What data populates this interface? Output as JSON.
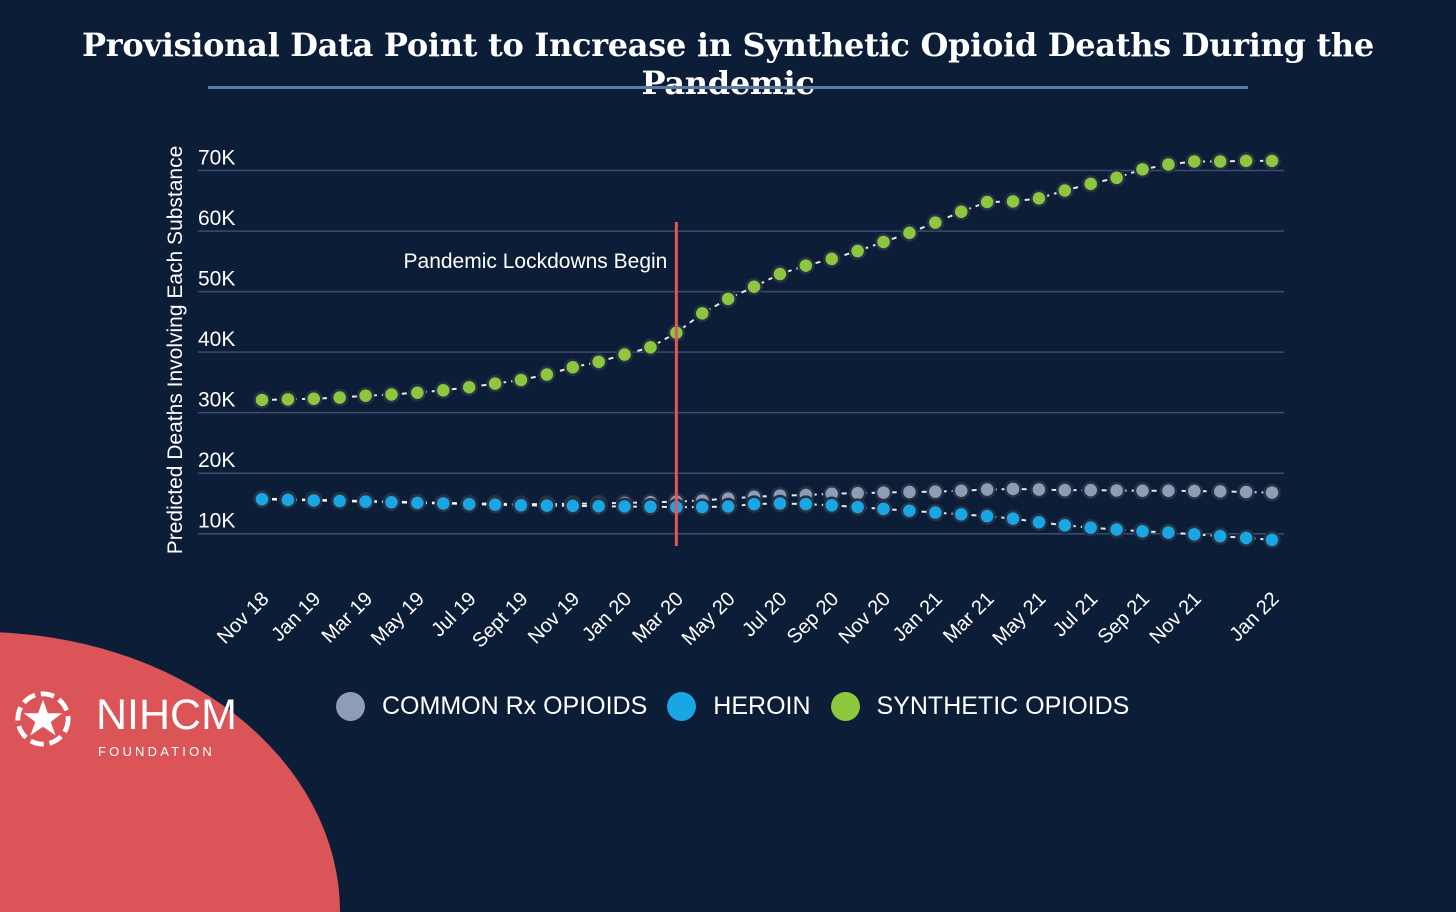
{
  "header": {
    "title": "Provisional Data Point to Increase in Synthetic Opioid Deaths During the Pandemic"
  },
  "chart_data": {
    "type": "line",
    "title": "Provisional Data Point to Increase in Synthetic Opioid Deaths During the Pandemic",
    "xlabel": "",
    "ylabel": "Predicted Deaths Involving Each Substance",
    "ylim": [
      5000,
      80000
    ],
    "y_ticks": [
      10000,
      20000,
      30000,
      40000,
      50000,
      60000,
      70000
    ],
    "y_tick_labels": [
      "10K",
      "20K",
      "30K",
      "40K",
      "50K",
      "60K",
      "70K"
    ],
    "x_count": 40,
    "x_tick_labels": [
      "Nov 18",
      "Jan 19",
      "Mar 19",
      "May 19",
      "Jul 19",
      "Sept 19",
      "Nov 19",
      "Jan 20",
      "Mar 20",
      "May 20",
      "Jul 20",
      "Sep 20",
      "Nov 20",
      "Jan 21",
      "Mar 21",
      "May 21",
      "Jul 21",
      "Sep 21",
      "Nov 21",
      "Jan 22"
    ],
    "x_tick_indices": [
      0,
      2,
      4,
      6,
      8,
      10,
      12,
      14,
      16,
      18,
      20,
      22,
      24,
      26,
      28,
      30,
      32,
      34,
      36,
      39
    ],
    "annotation": {
      "text": "Pandemic Lockdowns Begin",
      "at_index": 16.0
    },
    "series": [
      {
        "name": "COMMON Rx OPIOIDS",
        "color": "#8e9cb6",
        "values": [
          15800,
          15700,
          15600,
          15500,
          15400,
          15300,
          15200,
          15100,
          15000,
          14950,
          14900,
          14900,
          14950,
          15000,
          15100,
          15200,
          15300,
          15500,
          15800,
          16100,
          16300,
          16400,
          16600,
          16700,
          16800,
          16900,
          16950,
          17100,
          17300,
          17400,
          17300,
          17200,
          17200,
          17150,
          17100,
          17100,
          17050,
          17000,
          16900,
          16800
        ]
      },
      {
        "name": "HEROIN",
        "color": "#1aa6e4",
        "values": [
          15700,
          15600,
          15500,
          15400,
          15300,
          15200,
          15100,
          15000,
          14900,
          14800,
          14700,
          14650,
          14600,
          14550,
          14500,
          14450,
          14400,
          14400,
          14500,
          14900,
          15000,
          14900,
          14700,
          14400,
          14100,
          13800,
          13500,
          13200,
          12900,
          12500,
          11900,
          11400,
          11000,
          10700,
          10400,
          10200,
          9900,
          9600,
          9300,
          9000
        ]
      },
      {
        "name": "SYNTHETIC OPIOIDS",
        "color": "#8dc63f",
        "values": [
          32100,
          32200,
          32300,
          32500,
          32800,
          33000,
          33300,
          33700,
          34200,
          34800,
          35400,
          36300,
          37500,
          38400,
          39600,
          40800,
          43200,
          46400,
          48800,
          50800,
          52900,
          54300,
          55400,
          56700,
          58200,
          59700,
          61400,
          63200,
          64800,
          64900,
          65400,
          66700,
          67800,
          68800,
          70200,
          71000,
          71500,
          71500,
          71600,
          71600
        ]
      }
    ],
    "legend_position": "bottom",
    "grid": true
  },
  "legend": {
    "items": [
      "COMMON Rx OPIOIDS",
      "HEROIN",
      "SYNTHETIC OPIOIDS"
    ]
  },
  "logo": {
    "name": "NIHCM",
    "sub": "FOUNDATION"
  }
}
